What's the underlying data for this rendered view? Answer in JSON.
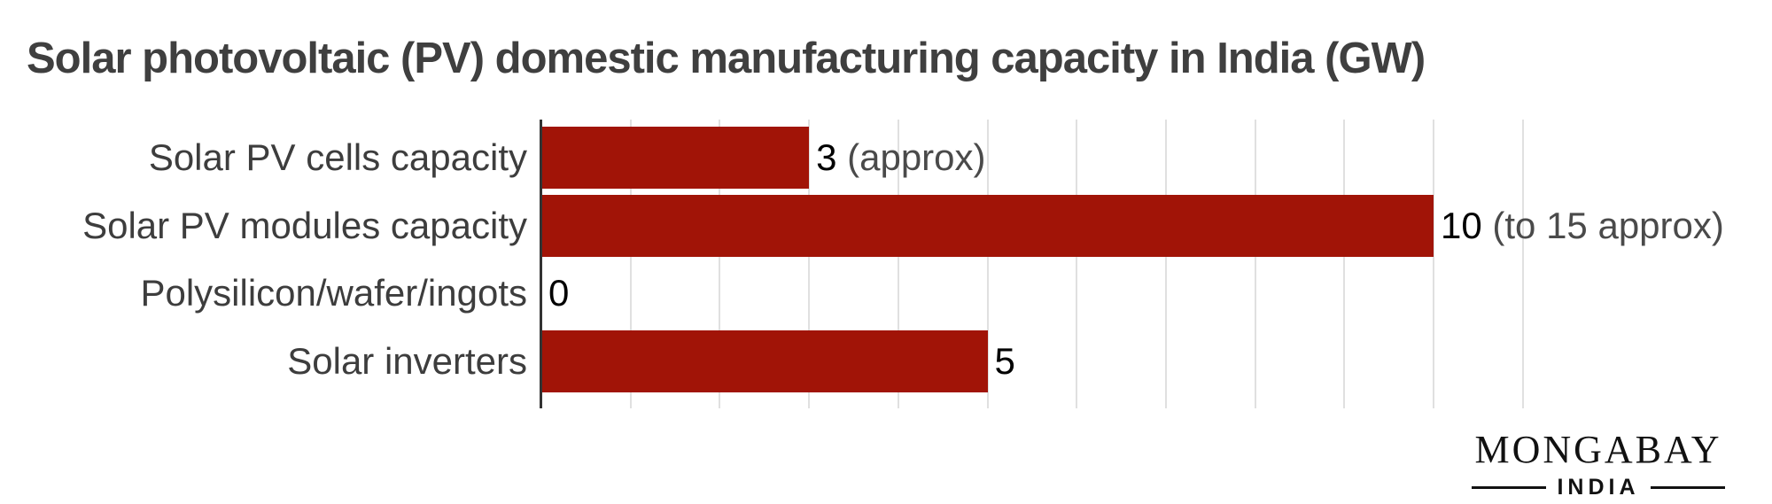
{
  "chart_data": {
    "type": "bar",
    "orientation": "horizontal",
    "title": "Solar photovoltaic (PV) domestic manufacturing capacity in India (GW)",
    "categories": [
      "Solar PV cells capacity",
      "Solar PV modules capacity",
      "Polysilicon/wafer/ingots",
      "Solar inverters"
    ],
    "values": [
      3,
      10,
      0,
      5
    ],
    "value_labels": [
      {
        "number": "3",
        "note": " (approx)"
      },
      {
        "number": "10",
        "note": " (to 15 approx)"
      },
      {
        "number": "0",
        "note": ""
      },
      {
        "number": "5",
        "note": ""
      }
    ],
    "unit": "GW",
    "xlim": [
      0,
      11
    ],
    "gridline_interval": 1,
    "grid": true,
    "legend": "none",
    "axis_tick_labels": "none",
    "colors": {
      "bar": "#a11407",
      "axis_line": "#333333",
      "gridline": "#e0e0e0",
      "title_text": "#3f3f3f",
      "category_text": "#3d3d3d",
      "value_number_text": "#000000",
      "value_note_text": "#4a4a4a"
    }
  },
  "branding": {
    "logo_main": "MONGABAY",
    "logo_sub": "INDIA",
    "logo_color": "#111111"
  }
}
